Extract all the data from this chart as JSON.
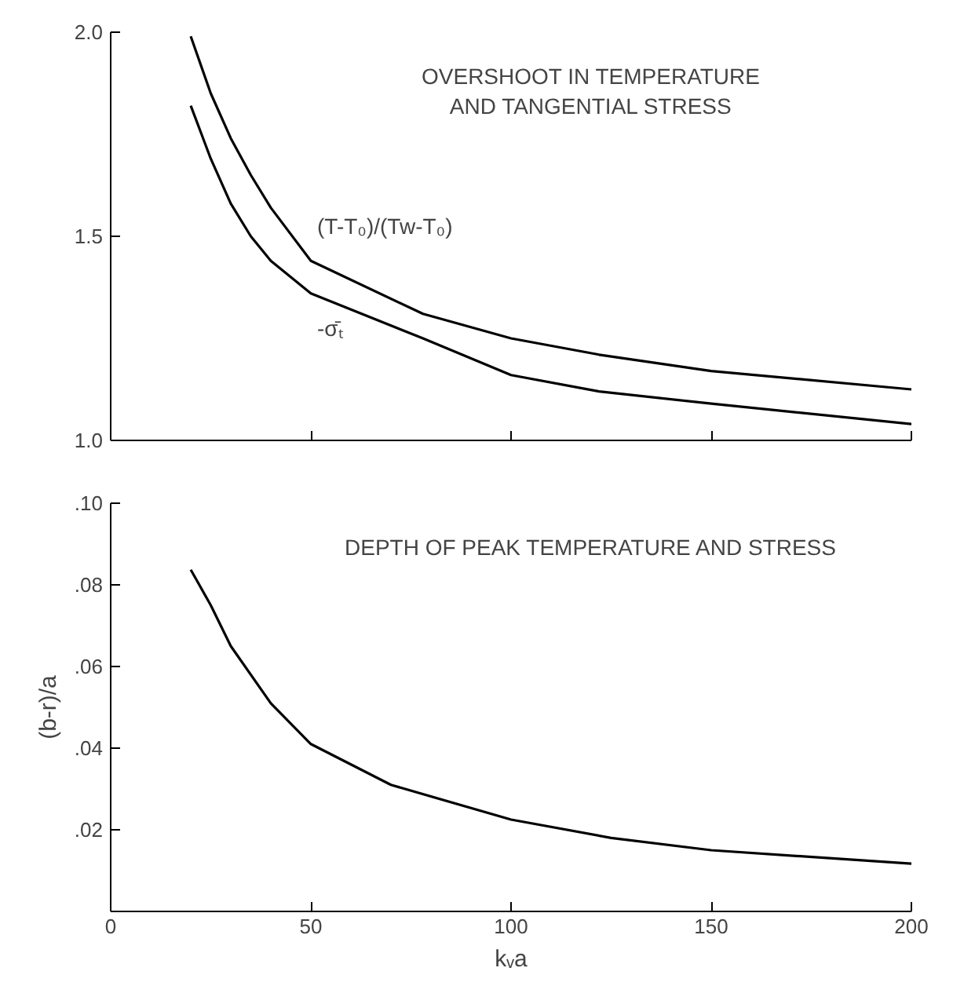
{
  "chart_data": [
    {
      "type": "line",
      "title": "OVERSHOOT IN TEMPERATURE\nAND TANGENTIAL STRESS",
      "grid": false,
      "tick_labels": "y",
      "line_style": "solid",
      "xlim": [
        0,
        200
      ],
      "xticks": [
        {
          "value": 50,
          "label": null
        },
        {
          "value": 100,
          "label": null
        },
        {
          "value": 150,
          "label": null
        },
        {
          "value": 200,
          "label": null
        }
      ],
      "ylim": [
        1.0,
        2.0
      ],
      "yticks": [
        {
          "value": 1.0,
          "label": "1.0"
        },
        {
          "value": 1.5,
          "label": "1.5"
        },
        {
          "value": 2.0,
          "label": "2.0"
        }
      ],
      "x": [
        20,
        25,
        30,
        35,
        40,
        50,
        78,
        100,
        122,
        150,
        200
      ],
      "series": [
        {
          "name": "(T-T₀)/(Tw-T₀)",
          "color": "#000000",
          "values": [
            1.99,
            1.85,
            1.74,
            1.65,
            1.57,
            1.44,
            1.31,
            1.25,
            1.21,
            1.17,
            1.125
          ]
        },
        {
          "name": "-σ̄ₜ",
          "color": "#000000",
          "values": [
            1.82,
            1.69,
            1.58,
            1.5,
            1.44,
            1.36,
            1.25,
            1.16,
            1.12,
            1.09,
            1.04
          ]
        }
      ]
    },
    {
      "type": "line",
      "title": "DEPTH OF PEAK TEMPERATURE AND STRESS",
      "xlabel": "kᵥa",
      "ylabel": "(b-r)/a",
      "grid": false,
      "line_style": "solid",
      "xlim": [
        0,
        200
      ],
      "xticks": [
        0,
        50,
        100,
        150,
        200
      ],
      "ylim": [
        0,
        0.1
      ],
      "yticks": [
        {
          "value": 0.02,
          "label": ".02"
        },
        {
          "value": 0.04,
          "label": ".04"
        },
        {
          "value": 0.06,
          "label": ".06"
        },
        {
          "value": 0.08,
          "label": ".08"
        },
        {
          "value": 0.1,
          "label": ".10"
        }
      ],
      "x": [
        20,
        25,
        30,
        40,
        50,
        70,
        100,
        125,
        150,
        200
      ],
      "series": [
        {
          "color": "#000000",
          "values": [
            0.0837,
            0.075,
            0.065,
            0.051,
            0.041,
            0.031,
            0.0225,
            0.018,
            0.015,
            0.0117
          ]
        }
      ]
    }
  ]
}
